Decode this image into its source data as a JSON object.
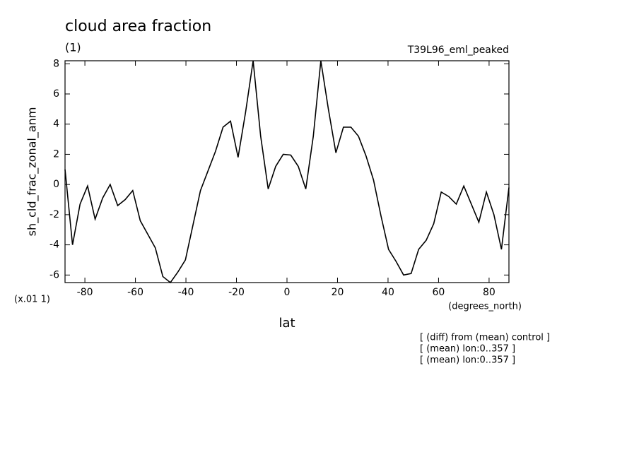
{
  "chart_data": {
    "type": "line",
    "title": "cloud area fraction",
    "subtitle": "(1)",
    "run_label": "T39L96_eml_peaked",
    "y_label": "sh_cld_frac_zonal_anm",
    "y_scale_label": "(x.01 1)",
    "x_label": "lat",
    "x_units_label": "(degrees_north)",
    "notes": [
      "[ (diff) from (mean) control ]",
      "[ (mean) lon:0..357 ]",
      "[ (mean) lon:0..357 ]"
    ],
    "color": "#000000",
    "x": [
      -87.86,
      -84.89,
      -81.91,
      -78.93,
      -75.95,
      -72.97,
      -69.99,
      -67.01,
      -64.04,
      -61.06,
      -58.08,
      -55.1,
      -52.12,
      -49.14,
      -46.16,
      -43.19,
      -40.21,
      -37.23,
      -34.25,
      -31.27,
      -28.29,
      -25.31,
      -22.34,
      -19.36,
      -16.38,
      -13.4,
      -10.42,
      -7.44,
      -4.47,
      -1.49,
      1.49,
      4.47,
      7.44,
      10.42,
      13.4,
      16.38,
      19.36,
      22.34,
      25.31,
      28.29,
      31.27,
      34.25,
      37.23,
      40.21,
      43.19,
      46.16,
      49.14,
      52.12,
      55.1,
      58.08,
      61.06,
      64.04,
      67.01,
      69.99,
      72.97,
      75.95,
      78.93,
      81.91,
      84.89,
      87.86
    ],
    "values": [
      1.0,
      -4.0,
      -1.3,
      -0.1,
      -2.3,
      -0.9,
      0.0,
      -1.4,
      -1.0,
      -0.4,
      -2.4,
      -3.3,
      -4.2,
      -6.1,
      -6.5,
      -5.8,
      -5.0,
      -2.7,
      -0.4,
      0.9,
      2.2,
      3.8,
      4.2,
      1.8,
      4.8,
      8.2,
      3.2,
      -0.3,
      1.2,
      2.0,
      1.95,
      1.2,
      -0.3,
      3.2,
      8.2,
      5.0,
      2.1,
      3.8,
      3.8,
      3.2,
      1.9,
      0.3,
      -2.1,
      -4.3,
      -5.1,
      -6.0,
      -5.9,
      -4.3,
      -3.7,
      -2.6,
      -0.5,
      -0.8,
      -1.3,
      -0.1,
      -1.3,
      -2.5,
      -0.5,
      -2.0,
      -4.3,
      -0.2
    ],
    "xlim": [
      -87.86,
      87.86
    ],
    "ylim": [
      -6.5,
      8.2
    ],
    "xticks": [
      -80,
      -60,
      -40,
      -20,
      0,
      20,
      40,
      60,
      80
    ],
    "yticks": [
      -6,
      -4,
      -2,
      0,
      2,
      4,
      6,
      8
    ]
  }
}
